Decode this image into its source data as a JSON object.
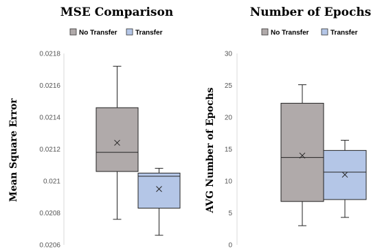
{
  "chart_data": [
    {
      "type": "box",
      "title": "MSE Comparison",
      "xlabel": "",
      "ylabel": "Mean Square Error",
      "ylim": [
        0.0206,
        0.0218
      ],
      "yticks": [
        0.0206,
        0.0208,
        0.021,
        0.0212,
        0.0214,
        0.0216,
        0.0218
      ],
      "ytick_labels": [
        "0.0206",
        "0.0208",
        "0.021",
        "0.0212",
        "0.0214",
        "0.0216",
        "0.0218"
      ],
      "grid": false,
      "legend_position": "top",
      "series": [
        {
          "name": "No Transfer",
          "color": "#b0aaaa",
          "min": 0.02076,
          "q1": 0.02106,
          "median": 0.02118,
          "q3": 0.02146,
          "max": 0.02172,
          "mean": 0.02124
        },
        {
          "name": "Transfer",
          "color": "#b4c6e7",
          "min": 0.02066,
          "q1": 0.02083,
          "median": 0.02103,
          "q3": 0.02105,
          "max": 0.02108,
          "mean": 0.02095
        }
      ]
    },
    {
      "type": "box",
      "title": "Number of Epochs",
      "xlabel": "",
      "ylabel": "AVG Number of Epochs",
      "ylim": [
        0,
        30
      ],
      "yticks": [
        0,
        5,
        10,
        15,
        20,
        25,
        30
      ],
      "ytick_labels": [
        "0",
        "5",
        "10",
        "15",
        "20",
        "25",
        "30"
      ],
      "grid": false,
      "legend_position": "top",
      "series": [
        {
          "name": "No Transfer",
          "color": "#b0aaaa",
          "min": 3,
          "q1": 6.8,
          "median": 13.7,
          "q3": 22.2,
          "max": 25.1,
          "mean": 14.0
        },
        {
          "name": "Transfer",
          "color": "#b4c6e7",
          "min": 4.3,
          "q1": 7.1,
          "median": 11.4,
          "q3": 14.8,
          "max": 16.4,
          "mean": 11.0
        }
      ]
    }
  ]
}
